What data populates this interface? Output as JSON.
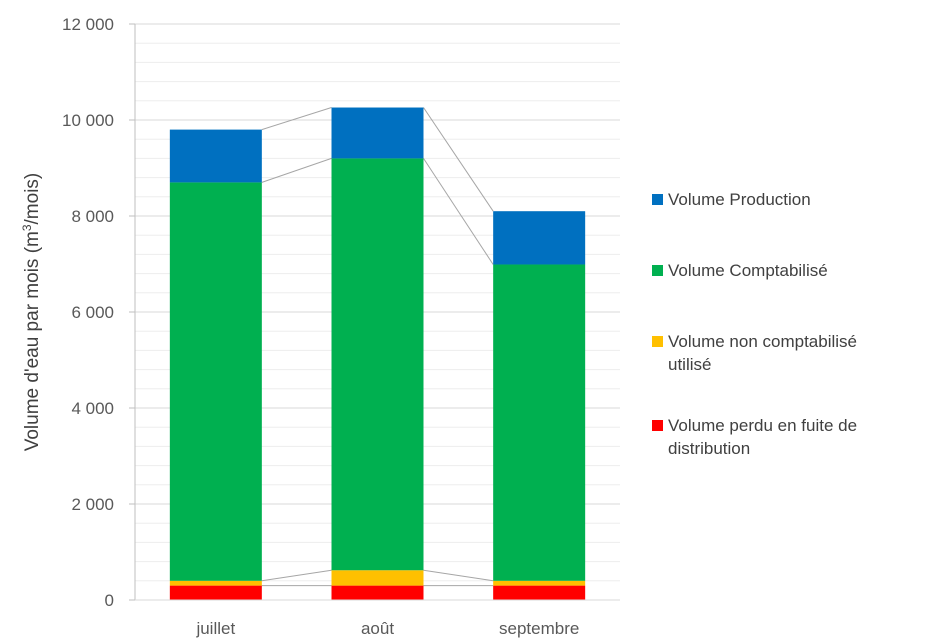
{
  "chart_data": {
    "type": "bar",
    "stacked": true,
    "categories": [
      "juillet",
      "août",
      "septembre"
    ],
    "series": [
      {
        "name": "Volume perdu en fuite de distribution",
        "color": "#ff0000",
        "values": [
          300,
          300,
          300
        ]
      },
      {
        "name": "Volume non comptabilisé utilisé",
        "color": "#ffc000",
        "values": [
          100,
          320,
          100
        ]
      },
      {
        "name": "Volume Comptabilisé",
        "color": "#00b050",
        "values": [
          8300,
          8580,
          6590
        ]
      },
      {
        "name": "Volume Production",
        "color": "#0070c0",
        "values": [
          1100,
          1060,
          1110
        ]
      }
    ],
    "ylabel_parts": [
      "Volume d'eau par mois (m",
      "3",
      "/mois)"
    ],
    "yticks": [
      "0",
      "2 000",
      "4 000",
      "6 000",
      "8 000",
      "10 000",
      "12 000"
    ],
    "ylim": [
      0,
      12000
    ],
    "ytick_values": [
      0,
      2000,
      4000,
      6000,
      8000,
      10000,
      12000
    ],
    "minor_grid_step": 400,
    "series_lines": true,
    "legend_position": "right"
  },
  "legend": [
    {
      "lines": [
        "Volume Production"
      ],
      "color": "#0070c0"
    },
    {
      "lines": [
        "Volume Comptabilisé"
      ],
      "color": "#00b050"
    },
    {
      "lines": [
        "Volume non comptabilisé",
        "utilisé"
      ],
      "color": "#ffc000"
    },
    {
      "lines": [
        "Volume perdu en fuite de",
        "distribution"
      ],
      "color": "#ff0000"
    }
  ]
}
